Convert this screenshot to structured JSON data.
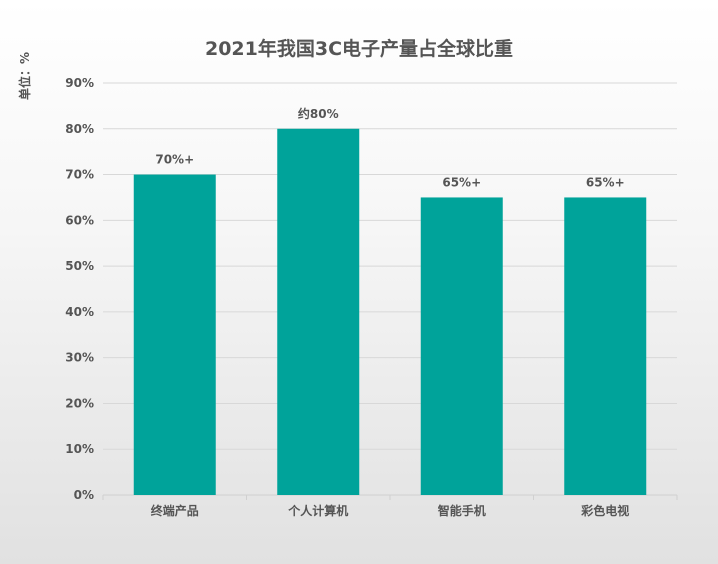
{
  "chart_data": {
    "type": "bar",
    "title": "2021年我国3C电子产量占全球比重",
    "ylabel": "单位：%",
    "xlabel": "",
    "categories": [
      "终端产品",
      "个人计算机",
      "智能手机",
      "彩色电视"
    ],
    "values": [
      70,
      80,
      65,
      65
    ],
    "data_labels": [
      "70%+",
      "约80%",
      "65%+",
      "65%+"
    ],
    "ylim": [
      0,
      90
    ],
    "yticks": [
      "0%",
      "10%",
      "20%",
      "30%",
      "40%",
      "50%",
      "60%",
      "70%",
      "80%",
      "90%"
    ],
    "grid": true,
    "legend": "none",
    "bar_color": "#00a39a"
  }
}
